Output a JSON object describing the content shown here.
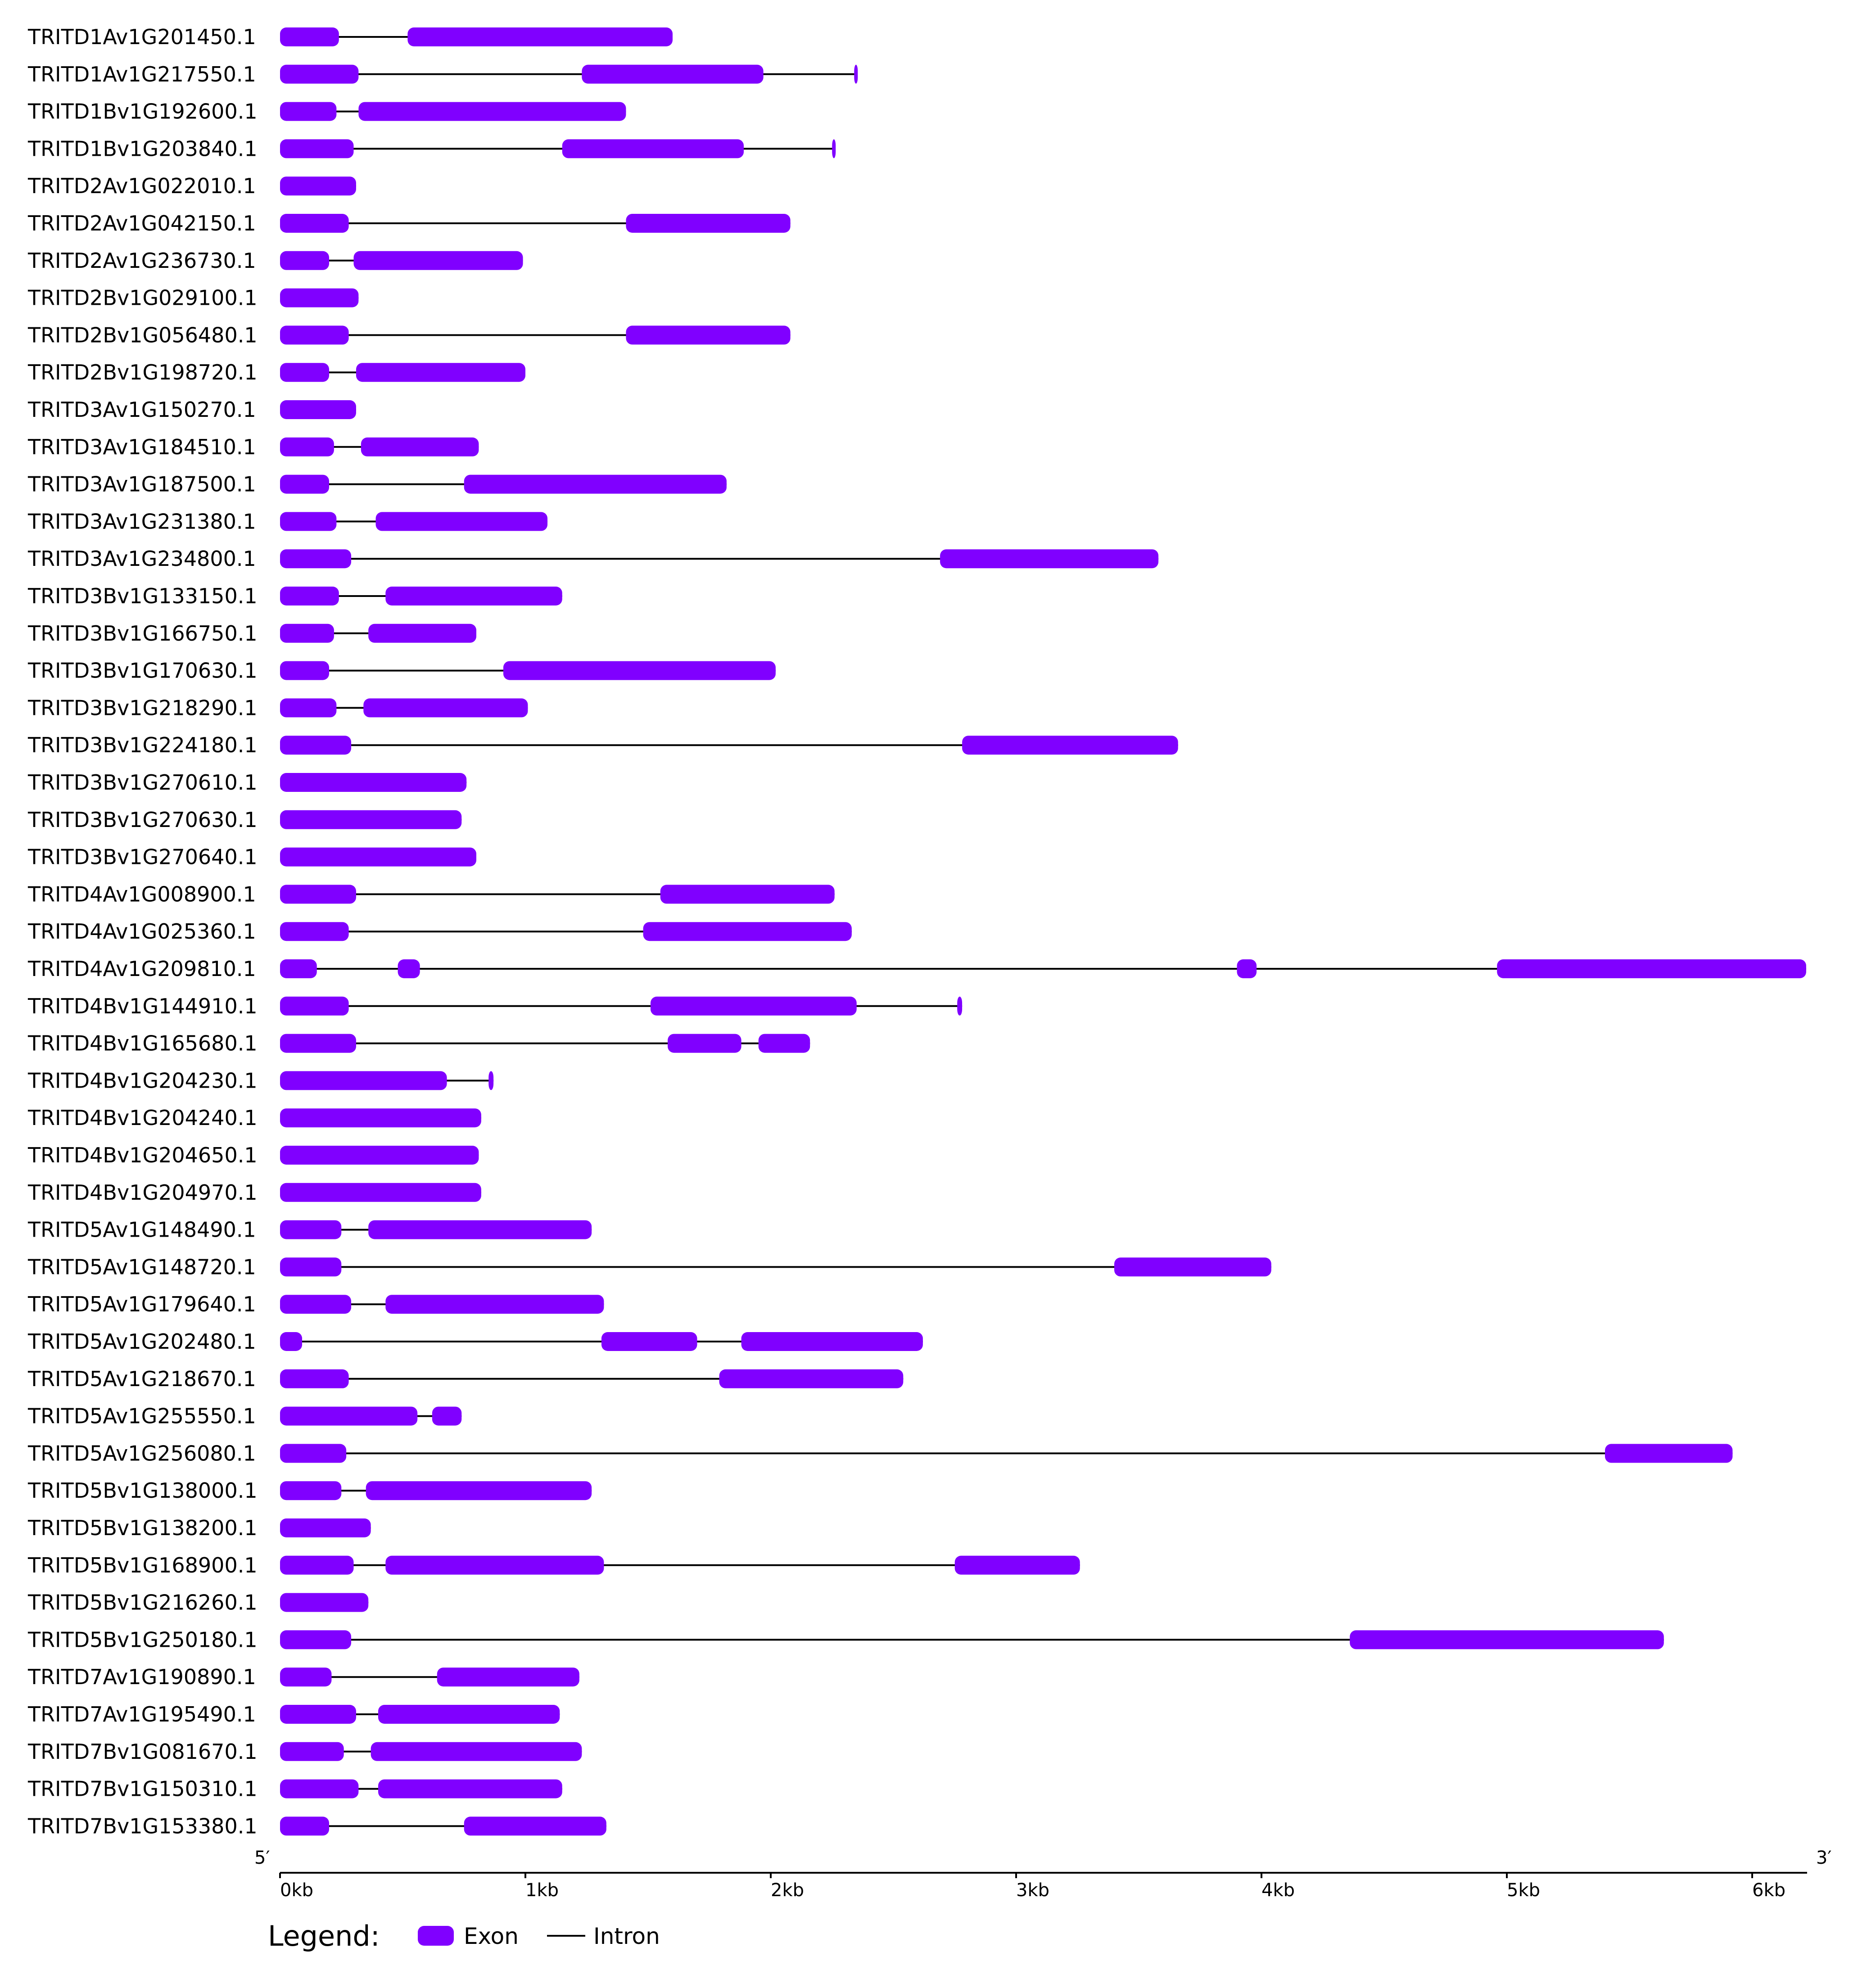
{
  "chart_data": {
    "type": "gene-structure",
    "colors": {
      "exon": "#8000FF",
      "intron": "#000000"
    },
    "axis": {
      "start_label": "5′",
      "end_label": "3′",
      "ticks": [
        "0kb",
        "1kb",
        "2kb",
        "3kb",
        "4kb",
        "5kb",
        "6kb"
      ],
      "range_kb": [
        0,
        6.22
      ]
    },
    "legend": {
      "title": "Legend:",
      "exon": "Exon",
      "intron": "Intron"
    },
    "genes": [
      {
        "name": "TRITD1Av1G201450.1",
        "length": 1.6,
        "exons": [
          [
            0,
            0.24
          ],
          [
            0.52,
            1.6
          ]
        ]
      },
      {
        "name": "TRITD1Av1G217550.1",
        "length": 2.35,
        "exons": [
          [
            0,
            0.32
          ],
          [
            1.23,
            1.97
          ],
          [
            2.34,
            2.35
          ]
        ]
      },
      {
        "name": "TRITD1Bv1G192600.1",
        "length": 1.41,
        "exons": [
          [
            0,
            0.23
          ],
          [
            0.32,
            1.41
          ]
        ]
      },
      {
        "name": "TRITD1Bv1G203840.1",
        "length": 2.26,
        "exons": [
          [
            0,
            0.3
          ],
          [
            1.15,
            1.89
          ],
          [
            2.25,
            2.26
          ]
        ]
      },
      {
        "name": "TRITD2Av1G022010.1",
        "length": 0.31,
        "exons": [
          [
            0,
            0.31
          ]
        ]
      },
      {
        "name": "TRITD2Av1G042150.1",
        "length": 2.08,
        "exons": [
          [
            0,
            0.28
          ],
          [
            1.41,
            2.08
          ]
        ]
      },
      {
        "name": "TRITD2Av1G236730.1",
        "length": 0.99,
        "exons": [
          [
            0,
            0.2
          ],
          [
            0.3,
            0.99
          ]
        ]
      },
      {
        "name": "TRITD2Bv1G029100.1",
        "length": 0.32,
        "exons": [
          [
            0,
            0.32
          ]
        ]
      },
      {
        "name": "TRITD2Bv1G056480.1",
        "length": 2.08,
        "exons": [
          [
            0,
            0.28
          ],
          [
            1.41,
            2.08
          ]
        ]
      },
      {
        "name": "TRITD2Bv1G198720.1",
        "length": 1.0,
        "exons": [
          [
            0,
            0.2
          ],
          [
            0.31,
            1.0
          ]
        ]
      },
      {
        "name": "TRITD3Av1G150270.1",
        "length": 0.31,
        "exons": [
          [
            0,
            0.31
          ]
        ]
      },
      {
        "name": "TRITD3Av1G184510.1",
        "length": 0.81,
        "exons": [
          [
            0,
            0.22
          ],
          [
            0.33,
            0.81
          ]
        ]
      },
      {
        "name": "TRITD3Av1G187500.1",
        "length": 1.82,
        "exons": [
          [
            0,
            0.2
          ],
          [
            0.75,
            1.82
          ]
        ]
      },
      {
        "name": "TRITD3Av1G231380.1",
        "length": 1.09,
        "exons": [
          [
            0,
            0.23
          ],
          [
            0.39,
            1.09
          ]
        ]
      },
      {
        "name": "TRITD3Av1G234800.1",
        "length": 3.58,
        "exons": [
          [
            0,
            0.29
          ],
          [
            2.69,
            3.58
          ]
        ]
      },
      {
        "name": "TRITD3Bv1G133150.1",
        "length": 1.15,
        "exons": [
          [
            0,
            0.24
          ],
          [
            0.43,
            1.15
          ]
        ]
      },
      {
        "name": "TRITD3Bv1G166750.1",
        "length": 0.8,
        "exons": [
          [
            0,
            0.22
          ],
          [
            0.36,
            0.8
          ]
        ]
      },
      {
        "name": "TRITD3Bv1G170630.1",
        "length": 2.02,
        "exons": [
          [
            0,
            0.2
          ],
          [
            0.91,
            2.02
          ]
        ]
      },
      {
        "name": "TRITD3Bv1G218290.1",
        "length": 1.01,
        "exons": [
          [
            0,
            0.23
          ],
          [
            0.34,
            1.01
          ]
        ]
      },
      {
        "name": "TRITD3Bv1G224180.1",
        "length": 3.66,
        "exons": [
          [
            0,
            0.29
          ],
          [
            2.78,
            3.66
          ]
        ]
      },
      {
        "name": "TRITD3Bv1G270610.1",
        "length": 0.76,
        "exons": [
          [
            0,
            0.76
          ]
        ]
      },
      {
        "name": "TRITD3Bv1G270630.1",
        "length": 0.74,
        "exons": [
          [
            0,
            0.74
          ]
        ]
      },
      {
        "name": "TRITD3Bv1G270640.1",
        "length": 0.8,
        "exons": [
          [
            0,
            0.8
          ]
        ]
      },
      {
        "name": "TRITD4Av1G008900.1",
        "length": 2.26,
        "exons": [
          [
            0,
            0.31
          ],
          [
            1.55,
            2.26
          ]
        ]
      },
      {
        "name": "TRITD4Av1G025360.1",
        "length": 2.33,
        "exons": [
          [
            0,
            0.28
          ],
          [
            1.48,
            2.33
          ]
        ]
      },
      {
        "name": "TRITD4Av1G209810.1",
        "length": 6.22,
        "exons": [
          [
            0,
            0.15
          ],
          [
            0.48,
            0.57
          ],
          [
            3.9,
            3.98
          ],
          [
            4.96,
            6.22
          ]
        ]
      },
      {
        "name": "TRITD4Bv1G144910.1",
        "length": 2.78,
        "exons": [
          [
            0,
            0.28
          ],
          [
            1.51,
            2.35
          ],
          [
            2.76,
            2.78
          ]
        ]
      },
      {
        "name": "TRITD4Bv1G165680.1",
        "length": 2.16,
        "exons": [
          [
            0,
            0.31
          ],
          [
            1.58,
            1.88
          ],
          [
            1.95,
            2.16
          ]
        ]
      },
      {
        "name": "TRITD4Bv1G204230.1",
        "length": 0.87,
        "exons": [
          [
            0,
            0.68
          ],
          [
            0.85,
            0.87
          ]
        ]
      },
      {
        "name": "TRITD4Bv1G204240.1",
        "length": 0.82,
        "exons": [
          [
            0,
            0.82
          ]
        ]
      },
      {
        "name": "TRITD4Bv1G204650.1",
        "length": 0.81,
        "exons": [
          [
            0,
            0.81
          ]
        ]
      },
      {
        "name": "TRITD4Bv1G204970.1",
        "length": 0.82,
        "exons": [
          [
            0,
            0.82
          ]
        ]
      },
      {
        "name": "TRITD5Av1G148490.1",
        "length": 1.27,
        "exons": [
          [
            0,
            0.25
          ],
          [
            0.36,
            1.27
          ]
        ]
      },
      {
        "name": "TRITD5Av1G148720.1",
        "length": 4.04,
        "exons": [
          [
            0,
            0.25
          ],
          [
            3.4,
            4.04
          ]
        ]
      },
      {
        "name": "TRITD5Av1G179640.1",
        "length": 1.32,
        "exons": [
          [
            0,
            0.29
          ],
          [
            0.43,
            1.32
          ]
        ]
      },
      {
        "name": "TRITD5Av1G202480.1",
        "length": 2.62,
        "exons": [
          [
            0,
            0.09
          ],
          [
            1.31,
            1.7
          ],
          [
            1.88,
            2.62
          ]
        ]
      },
      {
        "name": "TRITD5Av1G218670.1",
        "length": 2.54,
        "exons": [
          [
            0,
            0.28
          ],
          [
            1.79,
            2.54
          ]
        ]
      },
      {
        "name": "TRITD5Av1G255550.1",
        "length": 0.74,
        "exons": [
          [
            0,
            0.56
          ],
          [
            0.62,
            0.74
          ]
        ]
      },
      {
        "name": "TRITD5Av1G256080.1",
        "length": 5.92,
        "exons": [
          [
            0,
            0.27
          ],
          [
            5.4,
            5.92
          ]
        ]
      },
      {
        "name": "TRITD5Bv1G138000.1",
        "length": 1.27,
        "exons": [
          [
            0,
            0.25
          ],
          [
            0.35,
            1.27
          ]
        ]
      },
      {
        "name": "TRITD5Bv1G138200.1",
        "length": 0.37,
        "exons": [
          [
            0,
            0.37
          ]
        ]
      },
      {
        "name": "TRITD5Bv1G168900.1",
        "length": 3.26,
        "exons": [
          [
            0,
            0.3
          ],
          [
            0.43,
            1.32
          ],
          [
            2.75,
            3.26
          ]
        ]
      },
      {
        "name": "TRITD5Bv1G216260.1",
        "length": 0.36,
        "exons": [
          [
            0,
            0.36
          ]
        ]
      },
      {
        "name": "TRITD5Bv1G250180.1",
        "length": 5.64,
        "exons": [
          [
            0,
            0.29
          ],
          [
            4.36,
            5.64
          ]
        ]
      },
      {
        "name": "TRITD7Av1G190890.1",
        "length": 1.22,
        "exons": [
          [
            0,
            0.21
          ],
          [
            0.64,
            1.22
          ]
        ]
      },
      {
        "name": "TRITD7Av1G195490.1",
        "length": 1.14,
        "exons": [
          [
            0,
            0.31
          ],
          [
            0.4,
            1.14
          ]
        ]
      },
      {
        "name": "TRITD7Bv1G081670.1",
        "length": 1.23,
        "exons": [
          [
            0,
            0.26
          ],
          [
            0.37,
            1.23
          ]
        ]
      },
      {
        "name": "TRITD7Bv1G150310.1",
        "length": 1.15,
        "exons": [
          [
            0,
            0.32
          ],
          [
            0.4,
            1.15
          ]
        ]
      },
      {
        "name": "TRITD7Bv1G153380.1",
        "length": 1.33,
        "exons": [
          [
            0,
            0.2
          ],
          [
            0.75,
            1.33
          ]
        ]
      }
    ]
  }
}
